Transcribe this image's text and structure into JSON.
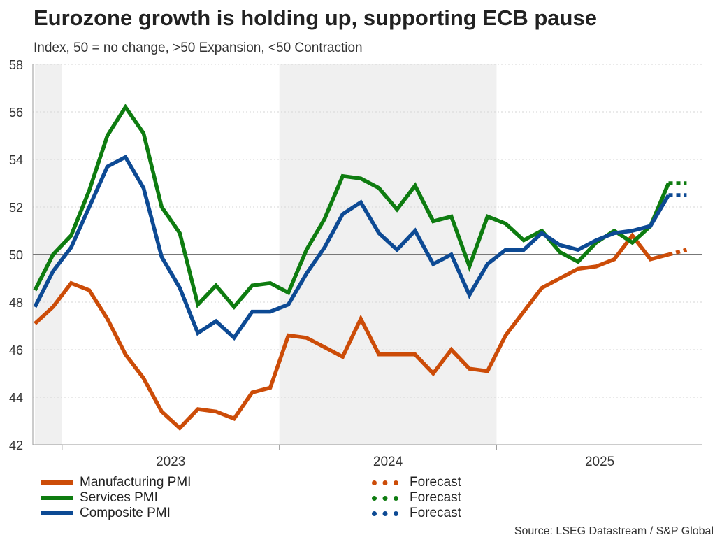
{
  "chart_data": {
    "type": "line",
    "title": "Eurozone growth is holding up, supporting ECB pause",
    "subtitle": "Index, 50 = no change, >50 Expansion, <50 Contraction",
    "source": "Source: LSEG Datastream / S&P Global",
    "ylim": [
      42,
      58
    ],
    "yticks": [
      42,
      44,
      46,
      48,
      50,
      52,
      54,
      56,
      58
    ],
    "reference_line": 50,
    "x_index_range": [
      0,
      36.3
    ],
    "x_labels": [
      {
        "label": "2023",
        "center": 7.5
      },
      {
        "label": "2024",
        "center": 19.5
      },
      {
        "label": "2025",
        "center": 31.2
      }
    ],
    "year_ticks": [
      1.5,
      13.5,
      25.5
    ],
    "shaded_periods": [
      [
        0,
        1.5
      ],
      [
        13.5,
        25.5
      ]
    ],
    "series": [
      {
        "name": "Manufacturing PMI",
        "color": "#cc4c08",
        "values": [
          47.1,
          47.8,
          48.8,
          48.5,
          47.3,
          45.8,
          44.8,
          43.4,
          42.7,
          43.5,
          43.4,
          43.1,
          44.2,
          44.4,
          46.6,
          46.5,
          46.1,
          45.7,
          47.3,
          45.8,
          45.8,
          45.8,
          45.0,
          46.0,
          45.2,
          45.1,
          46.6,
          47.6,
          48.6,
          49.0,
          49.4,
          49.5,
          49.8,
          50.8,
          49.8,
          50.0
        ],
        "forecast": [
          50.0,
          50.2
        ],
        "forecast_label": "Forecast"
      },
      {
        "name": "Services PMI",
        "color": "#0e7c10",
        "values": [
          48.5,
          50.0,
          50.8,
          52.7,
          55.0,
          56.2,
          55.1,
          52.0,
          50.9,
          47.9,
          48.7,
          47.8,
          48.7,
          48.8,
          48.4,
          50.2,
          51.5,
          53.3,
          53.2,
          52.8,
          51.9,
          52.9,
          51.4,
          51.6,
          49.5,
          51.6,
          51.3,
          50.6,
          51.0,
          50.1,
          49.7,
          50.5,
          51.0,
          50.5,
          51.2,
          53.0
        ],
        "forecast": [
          53.0,
          53.0
        ],
        "forecast_label": "Forecast"
      },
      {
        "name": "Composite PMI",
        "color": "#0d4a94",
        "values": [
          47.8,
          49.3,
          50.3,
          52.0,
          53.7,
          54.1,
          52.8,
          49.9,
          48.6,
          46.7,
          47.2,
          46.5,
          47.6,
          47.6,
          47.9,
          49.2,
          50.3,
          51.7,
          52.2,
          50.9,
          50.2,
          51.0,
          49.6,
          50.0,
          48.3,
          49.6,
          50.2,
          50.2,
          50.9,
          50.4,
          50.2,
          50.6,
          50.9,
          51.0,
          51.2,
          52.5
        ],
        "forecast": [
          52.5,
          52.5
        ],
        "forecast_label": "Forecast"
      }
    ]
  }
}
